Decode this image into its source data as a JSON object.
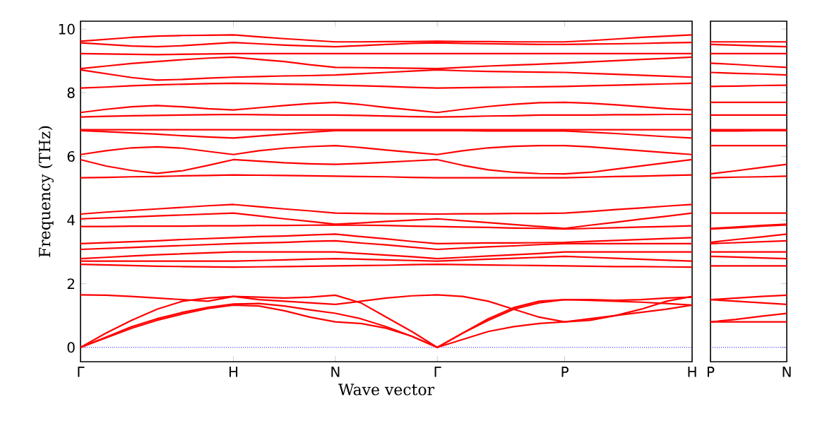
{
  "chart_data": [
    {
      "type": "line",
      "xlabel": "Wave vector",
      "ylabel": "Frequency (THz)",
      "color": "#ff0000",
      "ylim": [
        -0.45,
        10.25
      ],
      "categories": [
        "Γ",
        null,
        null,
        null,
        null,
        null,
        "H",
        null,
        null,
        null,
        "N",
        null,
        null,
        null,
        "Γ",
        null,
        null,
        null,
        null,
        "P",
        null,
        null,
        null,
        null,
        "H"
      ],
      "yticks": [
        0,
        2,
        4,
        6,
        8,
        10
      ],
      "ref_lines": [
        {
          "axis": "y",
          "value": 0,
          "color": "#0000ff",
          "line_style": "dotted"
        }
      ],
      "series": [
        {
          "values": [
            0,
            0.3,
            0.6,
            0.85,
            1.05,
            1.22,
            1.33,
            1.3,
            1.15,
            0.95,
            0.8,
            0.75,
            0.6,
            0.35,
            0,
            0.25,
            0.5,
            0.65,
            0.75,
            0.8,
            0.9,
            1.0,
            1.1,
            1.2,
            1.33
          ]
        },
        {
          "values": [
            0,
            0.32,
            0.65,
            0.9,
            1.1,
            1.26,
            1.36,
            1.38,
            1.3,
            1.18,
            1.07,
            0.9,
            0.65,
            0.35,
            0,
            0.45,
            0.85,
            1.2,
            1.4,
            1.5,
            1.5,
            1.48,
            1.5,
            1.55,
            1.58
          ]
        },
        {
          "values": [
            0,
            0.45,
            0.85,
            1.2,
            1.45,
            1.55,
            1.6,
            1.58,
            1.55,
            1.58,
            1.64,
            1.4,
            0.95,
            0.5,
            0,
            0.45,
            0.9,
            1.25,
            1.45,
            1.5,
            1.48,
            1.45,
            1.42,
            1.38,
            1.33
          ]
        },
        {
          "values": [
            1.65,
            1.64,
            1.6,
            1.55,
            1.5,
            1.45,
            1.6,
            1.5,
            1.45,
            1.4,
            1.35,
            1.45,
            1.55,
            1.62,
            1.65,
            1.6,
            1.45,
            1.2,
            0.95,
            0.8,
            0.85,
            1.0,
            1.2,
            1.45,
            1.6
          ]
        },
        {
          "values": [
            2.61,
            2.59,
            2.57,
            2.55,
            2.54,
            2.53,
            2.52,
            2.53,
            2.54,
            2.55,
            2.56,
            2.57,
            2.58,
            2.6,
            2.61,
            2.6,
            2.59,
            2.58,
            2.57,
            2.56,
            2.55,
            2.54,
            2.54,
            2.53,
            2.52
          ]
        },
        {
          "values": [
            2.71,
            2.71,
            2.71,
            2.71,
            2.71,
            2.71,
            2.71,
            2.73,
            2.75,
            2.77,
            2.79,
            2.77,
            2.75,
            2.73,
            2.71,
            2.74,
            2.77,
            2.8,
            2.83,
            2.86,
            2.83,
            2.8,
            2.77,
            2.74,
            2.71
          ]
        },
        {
          "values": [
            2.79,
            2.83,
            2.87,
            2.91,
            2.94,
            2.97,
            3.0,
            3.0,
            3.0,
            3.0,
            3.0,
            2.95,
            2.9,
            2.85,
            2.79,
            2.83,
            2.87,
            2.91,
            2.95,
            3.0,
            3.0,
            3.0,
            3.0,
            3.0,
            3.0
          ]
        },
        {
          "values": [
            3.08,
            3.11,
            3.14,
            3.17,
            3.2,
            3.23,
            3.26,
            3.28,
            3.3,
            3.33,
            3.35,
            3.28,
            3.22,
            3.15,
            3.08,
            3.12,
            3.16,
            3.19,
            3.23,
            3.26,
            3.26,
            3.26,
            3.26,
            3.26,
            3.26
          ]
        },
        {
          "values": [
            3.26,
            3.29,
            3.32,
            3.35,
            3.39,
            3.42,
            3.45,
            3.48,
            3.5,
            3.53,
            3.56,
            3.48,
            3.41,
            3.33,
            3.26,
            3.27,
            3.28,
            3.28,
            3.29,
            3.3,
            3.33,
            3.36,
            3.39,
            3.42,
            3.45
          ]
        },
        {
          "values": [
            3.8,
            3.8,
            3.81,
            3.81,
            3.81,
            3.82,
            3.82,
            3.83,
            3.83,
            3.84,
            3.85,
            3.84,
            3.83,
            3.81,
            3.8,
            3.78,
            3.77,
            3.75,
            3.74,
            3.72,
            3.74,
            3.76,
            3.78,
            3.8,
            3.82
          ]
        },
        {
          "values": [
            4.04,
            4.07,
            4.1,
            4.13,
            4.16,
            4.19,
            4.22,
            4.13,
            4.04,
            3.96,
            3.87,
            3.91,
            3.96,
            4.0,
            4.04,
            3.98,
            3.92,
            3.86,
            3.8,
            3.74,
            3.84,
            3.93,
            4.03,
            4.12,
            4.22
          ]
        },
        {
          "values": [
            4.19,
            4.25,
            4.3,
            4.35,
            4.4,
            4.45,
            4.49,
            4.42,
            4.35,
            4.29,
            4.22,
            4.21,
            4.2,
            4.2,
            4.19,
            4.2,
            4.2,
            4.21,
            4.21,
            4.22,
            4.27,
            4.33,
            4.38,
            4.44,
            4.49
          ]
        },
        {
          "values": [
            5.33,
            5.34,
            5.36,
            5.37,
            5.39,
            5.4,
            5.42,
            5.41,
            5.4,
            5.39,
            5.38,
            5.37,
            5.36,
            5.34,
            5.33,
            5.33,
            5.33,
            5.33,
            5.33,
            5.33,
            5.35,
            5.37,
            5.38,
            5.4,
            5.42
          ]
        },
        {
          "values": [
            5.9,
            5.7,
            5.56,
            5.47,
            5.55,
            5.72,
            5.9,
            5.85,
            5.8,
            5.77,
            5.75,
            5.78,
            5.82,
            5.86,
            5.9,
            5.72,
            5.58,
            5.5,
            5.46,
            5.45,
            5.5,
            5.6,
            5.7,
            5.8,
            5.9
          ]
        },
        {
          "values": [
            6.06,
            6.18,
            6.27,
            6.3,
            6.26,
            6.16,
            6.06,
            6.18,
            6.26,
            6.31,
            6.34,
            6.28,
            6.2,
            6.13,
            6.06,
            6.18,
            6.27,
            6.32,
            6.34,
            6.34,
            6.3,
            6.24,
            6.18,
            6.12,
            6.06
          ]
        },
        {
          "values": [
            6.81,
            6.78,
            6.74,
            6.7,
            6.65,
            6.61,
            6.58,
            6.64,
            6.7,
            6.76,
            6.81,
            6.81,
            6.81,
            6.81,
            6.81,
            6.81,
            6.8,
            6.8,
            6.8,
            6.8,
            6.76,
            6.72,
            6.67,
            6.62,
            6.58
          ]
        },
        {
          "values": [
            6.84,
            6.84,
            6.84,
            6.84,
            6.84,
            6.84,
            6.84,
            6.84,
            6.84,
            6.84,
            6.84,
            6.84,
            6.84,
            6.84,
            6.84,
            6.84,
            6.84,
            6.84,
            6.84,
            6.84,
            6.84,
            6.84,
            6.84,
            6.84,
            6.84
          ]
        },
        {
          "values": [
            7.38,
            7.48,
            7.56,
            7.6,
            7.56,
            7.5,
            7.46,
            7.53,
            7.6,
            7.66,
            7.7,
            7.63,
            7.54,
            7.46,
            7.38,
            7.48,
            7.57,
            7.64,
            7.69,
            7.7,
            7.67,
            7.62,
            7.56,
            7.5,
            7.46
          ]
        },
        {
          "values": [
            7.24,
            7.26,
            7.28,
            7.29,
            7.3,
            7.31,
            7.32,
            7.31,
            7.3,
            7.3,
            7.3,
            7.29,
            7.27,
            7.25,
            7.24,
            7.25,
            7.27,
            7.28,
            7.3,
            7.3,
            7.3,
            7.31,
            7.31,
            7.32,
            7.32
          ]
        },
        {
          "values": [
            8.15,
            8.18,
            8.22,
            8.25,
            8.27,
            8.29,
            8.3,
            8.29,
            8.27,
            8.26,
            8.24,
            8.22,
            8.2,
            8.17,
            8.15,
            8.16,
            8.17,
            8.18,
            8.19,
            8.2,
            8.22,
            8.24,
            8.26,
            8.28,
            8.3
          ]
        },
        {
          "values": [
            8.72,
            8.6,
            8.48,
            8.4,
            8.42,
            8.46,
            8.49,
            8.51,
            8.53,
            8.54,
            8.56,
            8.6,
            8.64,
            8.68,
            8.72,
            8.69,
            8.67,
            8.66,
            8.65,
            8.64,
            8.61,
            8.58,
            8.55,
            8.52,
            8.49
          ]
        },
        {
          "values": [
            8.76,
            8.84,
            8.92,
            8.98,
            9.04,
            9.09,
            9.12,
            9.05,
            8.98,
            8.88,
            8.8,
            8.79,
            8.78,
            8.77,
            8.76,
            8.8,
            8.84,
            8.87,
            8.9,
            8.93,
            8.97,
            9.01,
            9.05,
            9.08,
            9.12
          ]
        },
        {
          "values": [
            9.23,
            9.22,
            9.21,
            9.2,
            9.21,
            9.22,
            9.23,
            9.23,
            9.23,
            9.23,
            9.23,
            9.23,
            9.23,
            9.23,
            9.23,
            9.23,
            9.23,
            9.23,
            9.23,
            9.23,
            9.23,
            9.23,
            9.23,
            9.23,
            9.23
          ]
        },
        {
          "values": [
            9.57,
            9.52,
            9.47,
            9.45,
            9.48,
            9.53,
            9.58,
            9.54,
            9.5,
            9.47,
            9.45,
            9.48,
            9.52,
            9.55,
            9.57,
            9.55,
            9.54,
            9.53,
            9.52,
            9.52,
            9.53,
            9.54,
            9.55,
            9.57,
            9.58
          ]
        },
        {
          "values": [
            9.62,
            9.68,
            9.74,
            9.78,
            9.8,
            9.81,
            9.82,
            9.76,
            9.7,
            9.65,
            9.6,
            9.6,
            9.61,
            9.61,
            9.62,
            9.61,
            9.61,
            9.6,
            9.6,
            9.6,
            9.64,
            9.69,
            9.74,
            9.78,
            9.82
          ]
        }
      ]
    },
    {
      "type": "line",
      "color": "#ff0000",
      "ylim": [
        -0.45,
        10.25
      ],
      "tick_labels": "x",
      "categories": [
        "P",
        null,
        null,
        "N"
      ],
      "yticks": [
        0,
        2,
        4,
        6,
        8,
        10
      ],
      "ref_lines": [
        {
          "axis": "y",
          "value": 0,
          "color": "#0000ff",
          "line_style": "dotted"
        }
      ],
      "series": [
        {
          "values": [
            0.8,
            0.8,
            0.8,
            0.8
          ]
        },
        {
          "values": [
            0.8,
            0.88,
            0.98,
            1.07
          ]
        },
        {
          "values": [
            1.5,
            1.45,
            1.4,
            1.35
          ]
        },
        {
          "values": [
            1.5,
            1.55,
            1.6,
            1.64
          ]
        },
        {
          "values": [
            2.56,
            2.56,
            2.56,
            2.56
          ]
        },
        {
          "values": [
            2.86,
            2.84,
            2.81,
            2.79
          ]
        },
        {
          "values": [
            3.0,
            3.0,
            3.0,
            3.0
          ]
        },
        {
          "values": [
            3.26,
            3.29,
            3.32,
            3.35
          ]
        },
        {
          "values": [
            3.3,
            3.39,
            3.47,
            3.56
          ]
        },
        {
          "values": [
            3.72,
            3.76,
            3.81,
            3.85
          ]
        },
        {
          "values": [
            3.74,
            3.78,
            3.83,
            3.87
          ]
        },
        {
          "values": [
            4.22,
            4.22,
            4.22,
            4.22
          ]
        },
        {
          "values": [
            5.33,
            5.35,
            5.36,
            5.38
          ]
        },
        {
          "values": [
            5.45,
            5.55,
            5.65,
            5.75
          ]
        },
        {
          "values": [
            6.34,
            6.34,
            6.34,
            6.34
          ]
        },
        {
          "values": [
            6.8,
            6.8,
            6.81,
            6.81
          ]
        },
        {
          "values": [
            6.84,
            6.84,
            6.84,
            6.84
          ]
        },
        {
          "values": [
            7.3,
            7.3,
            7.3,
            7.3
          ]
        },
        {
          "values": [
            7.7,
            7.7,
            7.7,
            7.7
          ]
        },
        {
          "values": [
            8.2,
            8.21,
            8.23,
            8.24
          ]
        },
        {
          "values": [
            8.64,
            8.61,
            8.59,
            8.56
          ]
        },
        {
          "values": [
            8.93,
            8.89,
            8.84,
            8.8
          ]
        },
        {
          "values": [
            9.23,
            9.23,
            9.23,
            9.23
          ]
        },
        {
          "values": [
            9.52,
            9.5,
            9.47,
            9.45
          ]
        },
        {
          "values": [
            9.6,
            9.6,
            9.6,
            9.6
          ]
        }
      ]
    }
  ]
}
